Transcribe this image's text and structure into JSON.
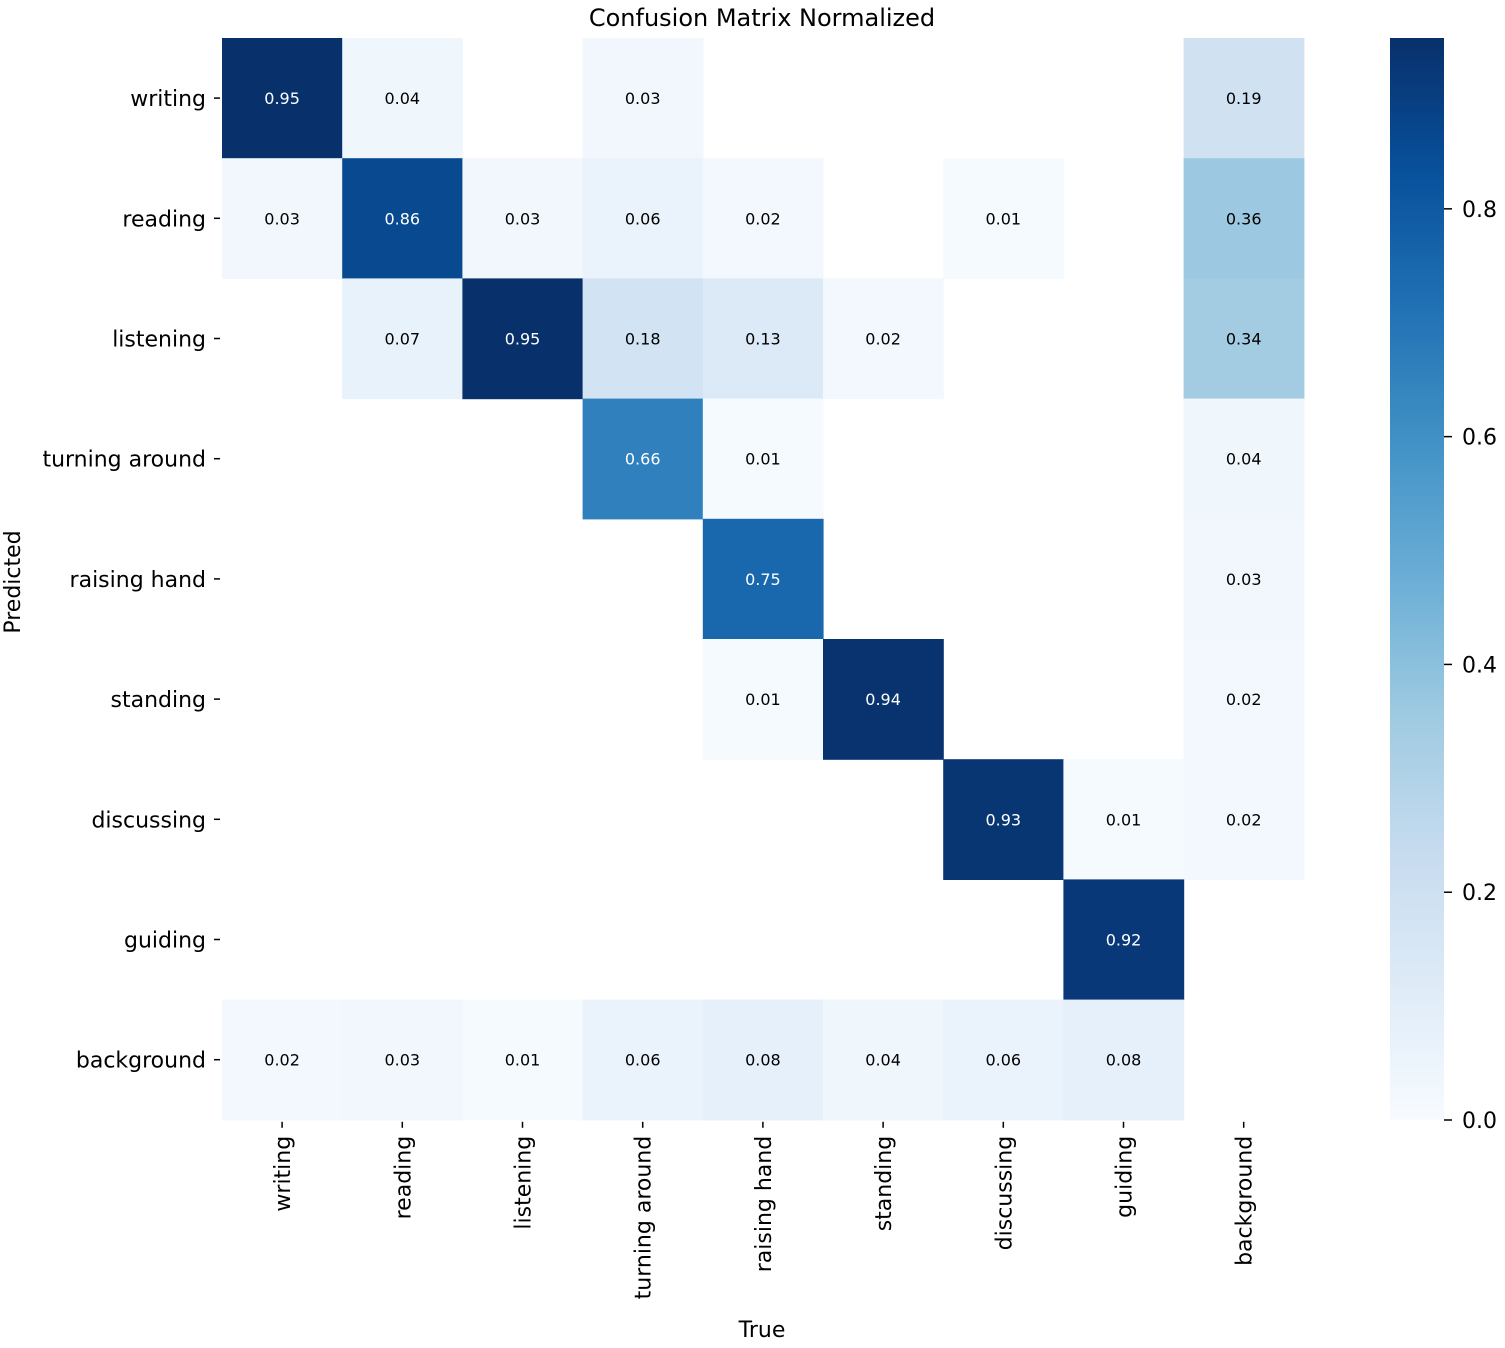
{
  "chart_data": {
    "type": "heatmap",
    "title": "Confusion Matrix Normalized",
    "xlabel": "True",
    "ylabel": "Predicted",
    "x_categories": [
      "writing",
      "reading",
      "listening",
      "turning around",
      "raising hand",
      "standing",
      "discussing",
      "guiding",
      "background"
    ],
    "y_categories": [
      "writing",
      "reading",
      "listening",
      "turning around",
      "raising hand",
      "standing",
      "discussing",
      "guiding",
      "background"
    ],
    "values": [
      [
        0.95,
        0.04,
        null,
        0.03,
        null,
        null,
        null,
        null,
        0.19
      ],
      [
        0.03,
        0.86,
        0.03,
        0.06,
        0.02,
        null,
        0.01,
        null,
        0.36
      ],
      [
        null,
        0.07,
        0.95,
        0.18,
        0.13,
        0.02,
        null,
        null,
        0.34
      ],
      [
        null,
        null,
        null,
        0.66,
        0.01,
        null,
        null,
        null,
        0.04
      ],
      [
        null,
        null,
        null,
        null,
        0.75,
        null,
        null,
        null,
        0.03
      ],
      [
        null,
        null,
        null,
        null,
        0.01,
        0.94,
        null,
        null,
        0.02
      ],
      [
        null,
        null,
        null,
        null,
        null,
        null,
        0.93,
        0.01,
        0.02
      ],
      [
        null,
        null,
        null,
        null,
        null,
        null,
        null,
        0.92,
        null
      ],
      [
        0.02,
        0.03,
        0.01,
        0.06,
        0.08,
        0.04,
        0.06,
        0.08,
        null
      ]
    ],
    "colormap": "Blues",
    "color_range": [
      0,
      0.95
    ],
    "colorbar_ticks": [
      "0.0",
      "0.2",
      "0.4",
      "0.6",
      "0.8"
    ],
    "colorbar_tick_values": [
      0.0,
      0.2,
      0.4,
      0.6,
      0.8
    ],
    "legend_position": "right"
  }
}
